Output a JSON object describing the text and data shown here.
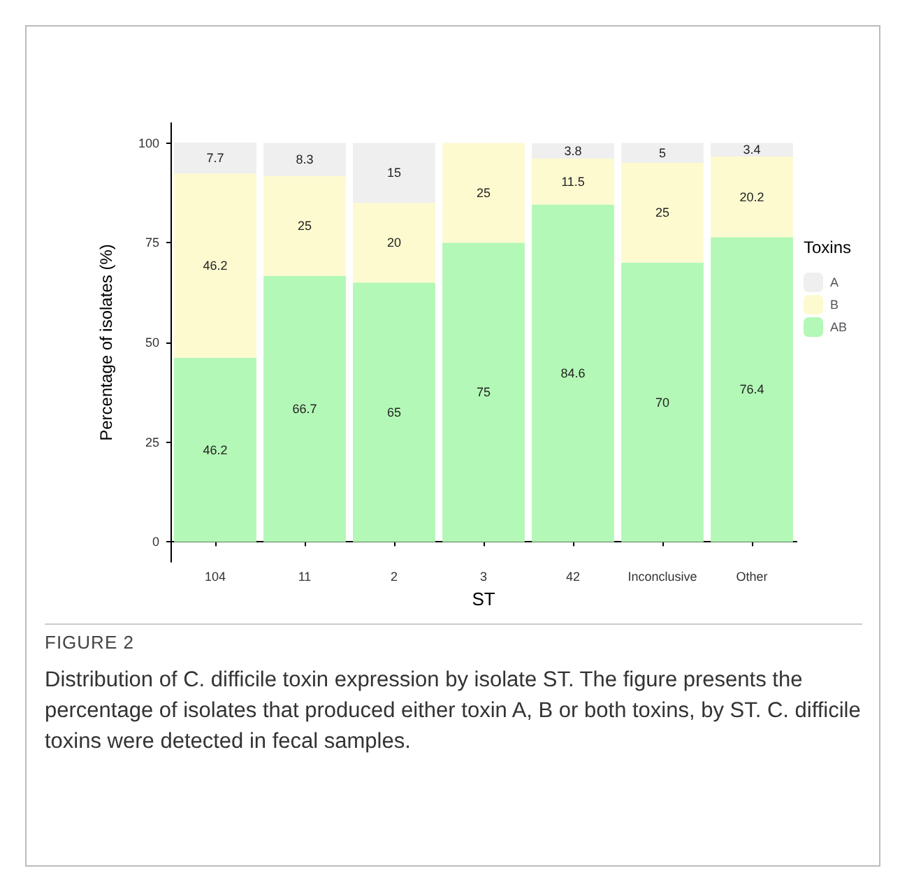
{
  "chart_data": {
    "type": "bar",
    "stacked": true,
    "xlabel": "ST",
    "ylabel": "Percentage of isolates (%)",
    "legend_title": "Toxins",
    "legend": "right",
    "grid": false,
    "data_labels": true,
    "categories": [
      "104",
      "11",
      "2",
      "3",
      "42",
      "Inconclusive",
      "Other"
    ],
    "ylim": [
      -5,
      105
    ],
    "yticks": [
      0,
      25,
      50,
      75,
      100
    ],
    "series": [
      {
        "name": "AB",
        "color": "#b3f8b6",
        "values": [
          46.2,
          66.7,
          65,
          75,
          84.6,
          70,
          76.4
        ]
      },
      {
        "name": "B",
        "color": "#fdfad0",
        "values": [
          46.2,
          25,
          20,
          25,
          11.5,
          25,
          20.2
        ]
      },
      {
        "name": "A",
        "color": "#efefef",
        "values": [
          7.7,
          8.3,
          15,
          null,
          3.8,
          5,
          3.4
        ]
      }
    ],
    "annotations": [
      "FIGURE 2",
      "Distribution of C. difficile toxin expression by isolate ST. The figure presents the percentage of isolates that produced either toxin A, B or both toxins, by ST. C. difficile toxins were detected in fecal samples."
    ]
  }
}
